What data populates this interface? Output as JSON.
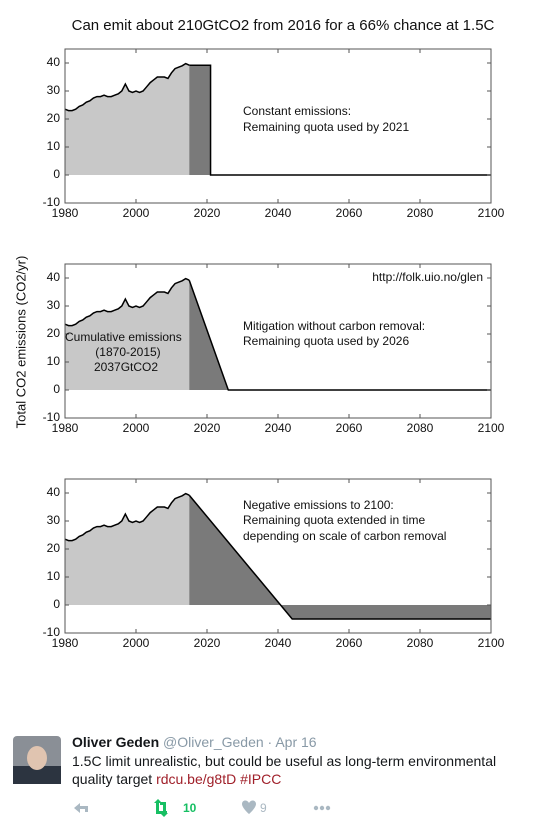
{
  "figure": {
    "title": "Can emit about 210GtCO2 from 2016 for a 66% chance at 1.5C",
    "ylabel": "Total CO2 emissions (CO2/yr)"
  },
  "chart_data": [
    {
      "type": "area",
      "x": [
        1980,
        1981,
        1982,
        1983,
        1984,
        1985,
        1986,
        1987,
        1988,
        1989,
        1990,
        1991,
        1992,
        1993,
        1994,
        1995,
        1996,
        1997,
        1998,
        1999,
        2000,
        2001,
        2002,
        2003,
        2004,
        2005,
        2006,
        2007,
        2008,
        2009,
        2010,
        2011,
        2012,
        2013,
        2014,
        2015
      ],
      "values": [
        23.5,
        23,
        23,
        23.5,
        24.5,
        25,
        26,
        26.5,
        27.5,
        28,
        28,
        28.5,
        28,
        28,
        28.5,
        29,
        30,
        32.5,
        30,
        29.5,
        30,
        29.5,
        30,
        31.5,
        33,
        34,
        35,
        35,
        35,
        34.5,
        36.5,
        38,
        38.5,
        39,
        39.8,
        39.2
      ],
      "color": "#c8c8c8",
      "scenario": {
        "x": [
          2015,
          2021,
          2021,
          2100
        ],
        "values": [
          39.2,
          39.2,
          0,
          0
        ],
        "color": "#7a7a7a"
      },
      "xlim": [
        1980,
        2100
      ],
      "xticks": [
        1980,
        2000,
        2020,
        2040,
        2060,
        2080,
        2100
      ],
      "ylim": [
        -10,
        45
      ],
      "yticks": [
        -10,
        0,
        10,
        20,
        30,
        40
      ],
      "annotations": [
        "Constant emissions:",
        "Remaining quota used by 2021"
      ]
    },
    {
      "type": "area",
      "x": [
        1980,
        1981,
        1982,
        1983,
        1984,
        1985,
        1986,
        1987,
        1988,
        1989,
        1990,
        1991,
        1992,
        1993,
        1994,
        1995,
        1996,
        1997,
        1998,
        1999,
        2000,
        2001,
        2002,
        2003,
        2004,
        2005,
        2006,
        2007,
        2008,
        2009,
        2010,
        2011,
        2012,
        2013,
        2014,
        2015
      ],
      "values": [
        23.5,
        23,
        23,
        23.5,
        24.5,
        25,
        26,
        26.5,
        27.5,
        28,
        28,
        28.5,
        28,
        28,
        28.5,
        29,
        30,
        32.5,
        30,
        29.5,
        30,
        29.5,
        30,
        31.5,
        33,
        34,
        35,
        35,
        35,
        34.5,
        36.5,
        38,
        38.5,
        39,
        39.8,
        39.2
      ],
      "color": "#c8c8c8",
      "scenario": {
        "x": [
          2015,
          2026,
          2100
        ],
        "values": [
          39.2,
          0,
          0
        ],
        "color": "#7a7a7a"
      },
      "xlim": [
        1980,
        2100
      ],
      "xticks": [
        1980,
        2000,
        2020,
        2040,
        2060,
        2080,
        2100
      ],
      "ylim": [
        -10,
        45
      ],
      "yticks": [
        -10,
        0,
        10,
        20,
        30,
        40
      ],
      "annotations": [
        "http://folk.uio.no/glen",
        "Mitigation without carbon removal:",
        "Remaining quota used by 2026",
        "Cumulative emissions",
        "(1870-2015)",
        "2037GtCO2"
      ]
    },
    {
      "type": "area",
      "x": [
        1980,
        1981,
        1982,
        1983,
        1984,
        1985,
        1986,
        1987,
        1988,
        1989,
        1990,
        1991,
        1992,
        1993,
        1994,
        1995,
        1996,
        1997,
        1998,
        1999,
        2000,
        2001,
        2002,
        2003,
        2004,
        2005,
        2006,
        2007,
        2008,
        2009,
        2010,
        2011,
        2012,
        2013,
        2014,
        2015
      ],
      "values": [
        23.5,
        23,
        23,
        23.5,
        24.5,
        25,
        26,
        26.5,
        27.5,
        28,
        28,
        28.5,
        28,
        28,
        28.5,
        29,
        30,
        32.5,
        30,
        29.5,
        30,
        29.5,
        30,
        31.5,
        33,
        34,
        35,
        35,
        35,
        34.5,
        36.5,
        38,
        38.5,
        39,
        39.8,
        39.2
      ],
      "color": "#c8c8c8",
      "scenario": {
        "x": [
          2015,
          2044,
          2100
        ],
        "values": [
          39.2,
          -5,
          -5
        ],
        "color": "#7a7a7a"
      },
      "xlim": [
        1980,
        2100
      ],
      "xticks": [
        1980,
        2000,
        2020,
        2040,
        2060,
        2080,
        2100
      ],
      "ylim": [
        -10,
        45
      ],
      "yticks": [
        -10,
        0,
        10,
        20,
        30,
        40
      ],
      "annotations": [
        "Negative emissions to 2100:",
        "Remaining quota extended in time",
        "depending on scale of carbon removal"
      ]
    }
  ],
  "tweet": {
    "author": "Oliver Geden",
    "handle": "@Oliver_Geden",
    "date": "Apr 16",
    "text": "1.5C limit unrealistic, but could be useful as long-term environmental quality target",
    "links": [
      "rdcu.be/g8tD",
      "#IPCC"
    ],
    "retweets": 10,
    "likes": 9
  }
}
